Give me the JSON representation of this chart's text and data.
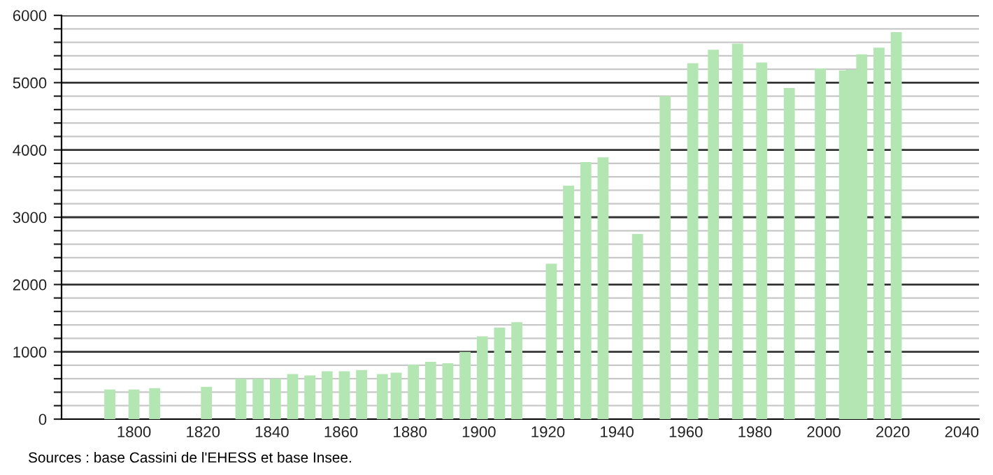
{
  "chart_data": {
    "type": "bar",
    "color": "#b3e6b3",
    "x": [
      1793,
      1800,
      1806,
      1821,
      1831,
      1836,
      1841,
      1846,
      1851,
      1856,
      1861,
      1866,
      1872,
      1876,
      1881,
      1886,
      1891,
      1896,
      1901,
      1906,
      1911,
      1921,
      1926,
      1931,
      1936,
      1946,
      1954,
      1962,
      1968,
      1975,
      1982,
      1990,
      1999,
      2006,
      2008,
      2011,
      2016,
      2021
    ],
    "values": [
      440,
      440,
      460,
      480,
      600,
      600,
      600,
      670,
      650,
      710,
      710,
      730,
      670,
      690,
      810,
      850,
      830,
      1000,
      1230,
      1360,
      1440,
      2310,
      3470,
      3820,
      3890,
      2750,
      4800,
      5290,
      5490,
      5580,
      5300,
      4920,
      5210,
      5180,
      5190,
      5420,
      5520,
      5750
    ],
    "xlim": [
      1779,
      2045
    ],
    "xticks": [
      1800,
      1820,
      1840,
      1860,
      1880,
      1900,
      1920,
      1940,
      1960,
      1980,
      2000,
      2020,
      2040
    ],
    "ylim": [
      0,
      6000
    ],
    "yticks": [
      0,
      {
        "value": 200,
        "label": null
      },
      {
        "value": 400,
        "label": null
      },
      {
        "value": 600,
        "label": null
      },
      {
        "value": 800,
        "label": null
      },
      1000,
      {
        "value": 1200,
        "label": null
      },
      {
        "value": 1400,
        "label": null
      },
      {
        "value": 1600,
        "label": null
      },
      {
        "value": 1800,
        "label": null
      },
      2000,
      {
        "value": 2200,
        "label": null
      },
      {
        "value": 2400,
        "label": null
      },
      {
        "value": 2600,
        "label": null
      },
      {
        "value": 2800,
        "label": null
      },
      3000,
      {
        "value": 3200,
        "label": null
      },
      {
        "value": 3400,
        "label": null
      },
      {
        "value": 3600,
        "label": null
      },
      {
        "value": 3800,
        "label": null
      },
      4000,
      {
        "value": 4200,
        "label": null
      },
      {
        "value": 4400,
        "label": null
      },
      {
        "value": 4600,
        "label": null
      },
      {
        "value": 4800,
        "label": null
      },
      5000,
      {
        "value": 5200,
        "label": null
      },
      {
        "value": 5400,
        "label": null
      },
      {
        "value": 5600,
        "label": null
      },
      {
        "value": 5800,
        "label": null
      },
      6000
    ],
    "grid": "y",
    "annotations": [
      "Sources : base Cassini de l'EHESS et base Insee."
    ]
  }
}
